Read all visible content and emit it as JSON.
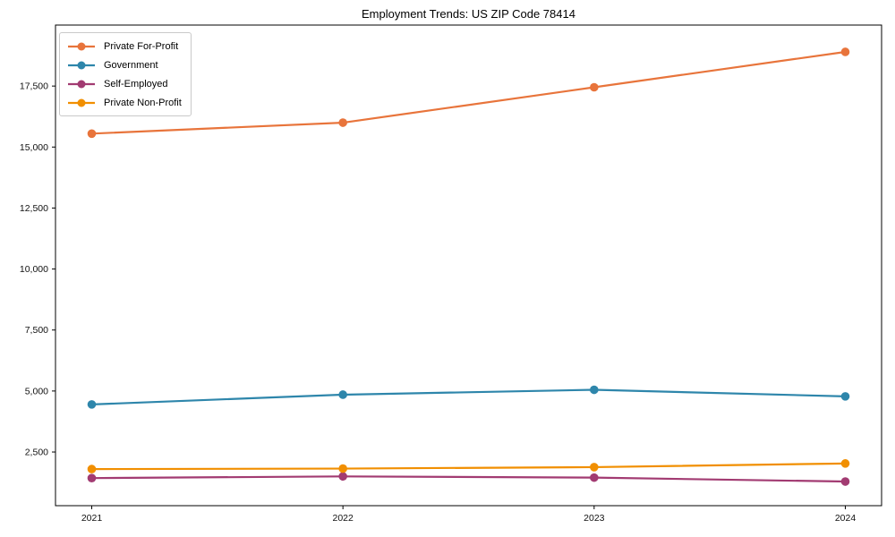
{
  "title": "Employment Trends: US ZIP Code 78414",
  "chart_data": {
    "type": "line",
    "title": "Employment Trends: US ZIP Code 78414",
    "x": [
      2021,
      2022,
      2023,
      2024
    ],
    "x_tick_labels": [
      "2021",
      "2022",
      "2023",
      "2024"
    ],
    "y_ticks": [
      2500,
      5000,
      7500,
      10000,
      12500,
      15000,
      17500
    ],
    "y_tick_labels": [
      "2,500",
      "5,000",
      "7,500",
      "10,000",
      "12,500",
      "15,000",
      "17,500"
    ],
    "ylim": [
      300,
      20000
    ],
    "grid": false,
    "legend_position": "upper left",
    "series": [
      {
        "name": "Private For-Profit",
        "color": "#E8743B",
        "values": [
          15550,
          16000,
          17450,
          18900
        ]
      },
      {
        "name": "Government",
        "color": "#2E86AB",
        "values": [
          4450,
          4850,
          5050,
          4780
        ]
      },
      {
        "name": "Self-Employed",
        "color": "#A23B72",
        "values": [
          1430,
          1500,
          1450,
          1290
        ]
      },
      {
        "name": "Private Non-Profit",
        "color": "#F18F01",
        "values": [
          1800,
          1820,
          1880,
          2030
        ]
      }
    ]
  }
}
